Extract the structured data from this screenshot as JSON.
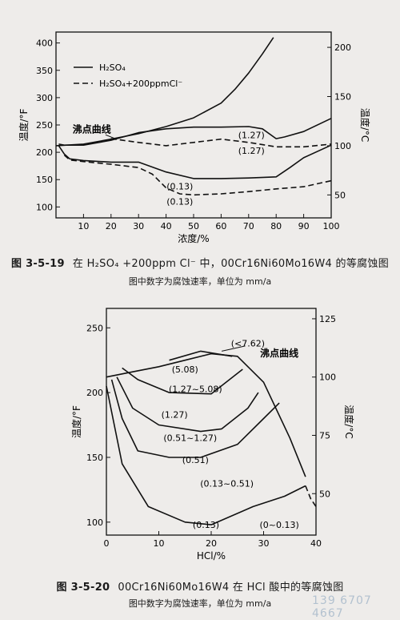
{
  "chart_data": [
    {
      "type": "line",
      "title": "在 H₂SO₄ +200ppm Cl⁻ 中，00Cr16Ni60Mo16W4 的等腐蚀图",
      "figure_number": "图 3-5-19",
      "subtitle": "图中数字为腐蚀速率，单位为 mm/a",
      "xlabel": "浓度/%",
      "ylabel_left": "温度/°F",
      "ylabel_right": "温度/°C",
      "xlim": [
        0,
        100
      ],
      "ylim_left": [
        80,
        420
      ],
      "xticks": [
        10,
        20,
        30,
        40,
        50,
        60,
        70,
        80,
        90,
        100
      ],
      "yticks_left": [
        100,
        150,
        200,
        250,
        300,
        350,
        400
      ],
      "yticks_right": [
        50,
        100,
        150,
        200
      ],
      "legend": {
        "position": "top-left",
        "entries": [
          {
            "label": "H₂SO₄",
            "style": "solid"
          },
          {
            "label": "H₂SO₄+200ppmCl⁻",
            "style": "dashed"
          }
        ]
      },
      "annotation_boiling": "沸点曲线",
      "series": [
        {
          "label": "沸点曲线",
          "style": "solid",
          "x": [
            0,
            10,
            20,
            30,
            40,
            50,
            60,
            65,
            70,
            75,
            79
          ],
          "y": [
            212,
            215,
            224,
            234,
            247,
            263,
            290,
            315,
            345,
            380,
            410
          ]
        },
        {
          "label": "(1.27)",
          "style": "solid",
          "x": [
            1,
            3,
            10,
            20,
            30,
            40,
            50,
            60,
            70,
            75,
            80,
            83,
            90,
            100
          ],
          "y": [
            215,
            213,
            213,
            222,
            236,
            243,
            246,
            246,
            247,
            243,
            225,
            228,
            238,
            262
          ]
        },
        {
          "label": "(1.27)",
          "style": "dashed",
          "x": [
            20,
            30,
            40,
            50,
            60,
            70,
            80,
            90,
            100
          ],
          "y": [
            225,
            218,
            212,
            218,
            224,
            218,
            210,
            210,
            215
          ]
        },
        {
          "label": "(0.13)",
          "style": "solid",
          "x": [
            1,
            3,
            5,
            10,
            20,
            30,
            40,
            50,
            60,
            70,
            80,
            85,
            90,
            100
          ],
          "y": [
            212,
            197,
            188,
            185,
            182,
            182,
            164,
            152,
            152,
            153,
            155,
            172,
            190,
            213
          ]
        },
        {
          "label": "(0.13)",
          "style": "dashed",
          "x": [
            3,
            5,
            10,
            20,
            30,
            35,
            40,
            45,
            50,
            60,
            70,
            80,
            90,
            100
          ],
          "y": [
            195,
            186,
            183,
            178,
            172,
            160,
            135,
            124,
            122,
            124,
            128,
            133,
            137,
            148
          ]
        }
      ],
      "labels": [
        {
          "text": "(1.27)",
          "x": 71,
          "y": 232
        },
        {
          "text": "(1.27)",
          "x": 71,
          "y": 203
        },
        {
          "text": "(0.13)",
          "x": 45,
          "y": 138
        },
        {
          "text": "(0.13)",
          "x": 45,
          "y": 110
        }
      ]
    },
    {
      "type": "line",
      "title": "00Cr16Ni60Mo16W4 在 HCl 酸中的等腐蚀图",
      "figure_number": "图 3-5-20",
      "subtitle": "图中数字为腐蚀速率，单位为 mm/a",
      "xlabel": "HCl/%",
      "ylabel_left": "温度/°F",
      "ylabel_right": "温度/°C",
      "xlim": [
        0,
        40
      ],
      "ylim_left": [
        90,
        265
      ],
      "xticks": [
        0,
        10,
        20,
        30,
        40
      ],
      "yticks_left": [
        100,
        150,
        200,
        250
      ],
      "yticks_right": [
        50,
        75,
        100,
        125
      ],
      "annotation_boiling": "沸点曲线",
      "series": [
        {
          "label": "沸点曲线",
          "style": "solid",
          "x": [
            0,
            5,
            10,
            15,
            20,
            25,
            30,
            35,
            38
          ],
          "y": [
            212,
            216,
            220,
            225,
            230,
            228,
            208,
            165,
            135
          ]
        },
        {
          "label": "(<7.62)",
          "style": "solid",
          "x": [
            12,
            18,
            24
          ],
          "y": [
            225,
            232,
            228
          ]
        },
        {
          "label": "(5.08)",
          "style": "solid",
          "x": [
            3,
            6,
            12,
            20,
            26
          ],
          "y": [
            219,
            210,
            200,
            199,
            218
          ]
        },
        {
          "label": "(1.27)",
          "style": "solid",
          "x": [
            2,
            5,
            10,
            18,
            22,
            27,
            29
          ],
          "y": [
            212,
            188,
            175,
            170,
            172,
            188,
            200
          ]
        },
        {
          "label": "(0.51)",
          "style": "solid",
          "x": [
            1,
            3,
            6,
            12,
            18,
            25,
            30,
            33
          ],
          "y": [
            210,
            180,
            155,
            150,
            150,
            160,
            180,
            192
          ]
        },
        {
          "label": "(0.13)",
          "style": "solid",
          "x": [
            0,
            3,
            8,
            15,
            20,
            28,
            34,
            38
          ],
          "y": [
            205,
            145,
            112,
            100,
            98,
            112,
            120,
            128
          ]
        },
        {
          "label": "dashed-end",
          "style": "dashed",
          "x": [
            38,
            39,
            40
          ],
          "y": [
            128,
            118,
            112
          ]
        }
      ],
      "labels": [
        {
          "text": "(<7.62)",
          "x": 27,
          "y": 238
        },
        {
          "text": "(5.08)",
          "x": 15,
          "y": 218
        },
        {
          "text": "(1.27~5.08)",
          "x": 17,
          "y": 203
        },
        {
          "text": "(1.27)",
          "x": 13,
          "y": 183
        },
        {
          "text": "(0.51~1.27)",
          "x": 16,
          "y": 165
        },
        {
          "text": "(0.51)",
          "x": 17,
          "y": 148
        },
        {
          "text": "(0.13~0.51)",
          "x": 23,
          "y": 130
        },
        {
          "text": "(0.13)",
          "x": 19,
          "y": 98
        },
        {
          "text": "(0~0.13)",
          "x": 33,
          "y": 98
        }
      ]
    }
  ],
  "page": {
    "cap1_fig": "图 3-5-19",
    "cap1_text": "在 H₂SO₄ +200ppm Cl⁻ 中，00Cr16Ni60Mo16W4 的等腐蚀图",
    "sub1": "图中数字为腐蚀速率，单位为 mm/a",
    "cap2_fig": "图 3-5-20",
    "cap2_text": "00Cr16Ni60Mo16W4 在 HCl 酸中的等腐蚀图",
    "sub2": "图中数字为腐蚀速率，单位为 mm/a",
    "watermark": "139 6707 4667"
  }
}
